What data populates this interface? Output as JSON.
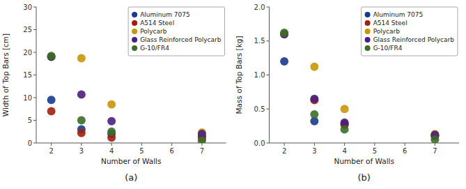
{
  "chart_data": [
    {
      "type": "scatter",
      "x": [
        2,
        3,
        4,
        7
      ],
      "series": [
        {
          "name": "Aluminum 7075",
          "color": "#1a3a8c",
          "values": [
            9.5,
            3.0,
            2.0,
            1.5
          ]
        },
        {
          "name": "A514 Steel",
          "color": "#a02010",
          "values": [
            7.0,
            2.2,
            1.2,
            1.0
          ]
        },
        {
          "name": "Polycarb",
          "color": "#c8960a",
          "values": [
            19.0,
            18.7,
            8.5,
            2.3
          ]
        },
        {
          "name": "Glass Reinforced Polycarb",
          "color": "#4b2080",
          "values": [
            19.0,
            10.7,
            4.8,
            2.0
          ]
        },
        {
          "name": "G-10/FR4",
          "color": "#3a6e28",
          "values": [
            19.2,
            5.0,
            2.5,
            0.5
          ]
        }
      ],
      "x_label": "Number of Walls",
      "y_label": "Width of Top Bars [cm]",
      "annotation": "(a)",
      "xlim": [
        1.5,
        7.8
      ],
      "xticks": [
        2,
        3,
        4,
        5,
        6,
        7
      ],
      "ylim": [
        0,
        30
      ],
      "yticks": [
        0,
        5,
        10,
        15,
        20,
        25,
        30
      ],
      "marker": "circle",
      "grid": false,
      "legend": "top-right"
    },
    {
      "type": "scatter",
      "x": [
        2,
        3,
        4,
        7
      ],
      "series": [
        {
          "name": "Aluminum 7075",
          "color": "#1a3a8c",
          "values": [
            1.2,
            0.32,
            0.28,
            0.1
          ]
        },
        {
          "name": "A514 Steel",
          "color": "#a02010",
          "values": [
            1.6,
            0.63,
            0.27,
            0.11
          ]
        },
        {
          "name": "Polycarb",
          "color": "#c8960a",
          "values": [
            1.6,
            1.12,
            0.5,
            0.13
          ]
        },
        {
          "name": "Glass Reinforced Polycarb",
          "color": "#4b2080",
          "values": [
            1.6,
            0.65,
            0.3,
            0.12
          ]
        },
        {
          "name": "G-10/FR4",
          "color": "#3a6e28",
          "values": [
            1.62,
            0.42,
            0.2,
            0.05
          ]
        }
      ],
      "x_label": "Number of Walls",
      "y_label": "Mass of Top Bars [kg]",
      "annotation": "(b)",
      "xlim": [
        1.5,
        7.8
      ],
      "xticks": [
        2,
        3,
        4,
        5,
        6,
        7
      ],
      "ylim": [
        0,
        2
      ],
      "yticks": [
        {
          "value": 0,
          "label": "0.0"
        },
        0.5,
        {
          "value": 1.0,
          "label": "1.0"
        },
        1.5,
        {
          "value": 2.0,
          "label": "2.0"
        }
      ],
      "marker": "circle",
      "grid": false,
      "legend": "top-right"
    }
  ]
}
